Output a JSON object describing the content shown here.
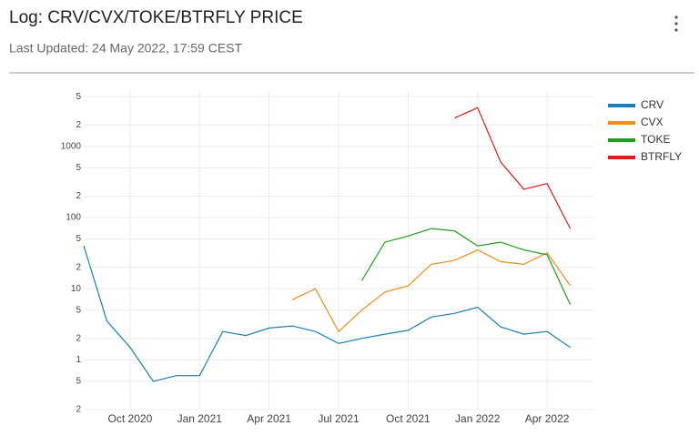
{
  "chart_data": {
    "type": "line",
    "title": "Log: CRV/CVX/TOKE/BTRFLY PRICE",
    "subtitle": "Last Updated: 24 May 2022, 17:59 CEST",
    "log_y": true,
    "grid": true,
    "legend": "right",
    "x": [
      "2020-08",
      "2020-09",
      "2020-10",
      "2020-11",
      "2020-12",
      "2021-01",
      "2021-02",
      "2021-03",
      "2021-04",
      "2021-05",
      "2021-06",
      "2021-07",
      "2021-08",
      "2021-09",
      "2021-10",
      "2021-11",
      "2021-12",
      "2022-01",
      "2022-02",
      "2022-03",
      "2022-04",
      "2022-05"
    ],
    "xlim": [
      "2020-08",
      "2022-06"
    ],
    "xticks": [
      {
        "value": "2020-10",
        "label": "Oct 2020"
      },
      {
        "value": "2021-01",
        "label": "Jan 2021"
      },
      {
        "value": "2021-04",
        "label": "Apr 2021"
      },
      {
        "value": "2021-07",
        "label": "Jul 2021"
      },
      {
        "value": "2021-10",
        "label": "Oct 2021"
      },
      {
        "value": "2022-01",
        "label": "Jan 2022"
      },
      {
        "value": "2022-04",
        "label": "Apr 2022"
      }
    ],
    "ylim": [
      0.2,
      6000
    ],
    "yticks": [
      {
        "value": 0.2,
        "label": "2"
      },
      {
        "value": 0.5,
        "label": "5"
      },
      1,
      2,
      5,
      10,
      {
        "value": 20,
        "label": "2"
      },
      {
        "value": 50,
        "label": "5"
      },
      100,
      {
        "value": 200,
        "label": "2"
      },
      {
        "value": 500,
        "label": "5"
      },
      1000,
      {
        "value": 2000,
        "label": "2"
      },
      {
        "value": 5000,
        "label": "5"
      }
    ],
    "series": [
      {
        "name": "CRV",
        "color": "#1a80b6",
        "values": [
          40,
          3.5,
          1.5,
          0.5,
          0.6,
          0.6,
          2.5,
          2.2,
          2.8,
          3.0,
          2.5,
          1.7,
          2.0,
          2.3,
          2.6,
          4.0,
          4.5,
          5.5,
          2.9,
          2.3,
          2.5,
          1.5
        ]
      },
      {
        "name": "CVX",
        "color": "#f28c1b",
        "values": [
          null,
          null,
          null,
          null,
          null,
          null,
          null,
          null,
          null,
          7,
          10,
          2.5,
          5,
          9,
          11,
          22,
          25,
          35,
          24,
          22,
          32,
          11
        ]
      },
      {
        "name": "TOKE",
        "color": "#1aa01a",
        "values": [
          null,
          null,
          null,
          null,
          null,
          null,
          null,
          null,
          null,
          null,
          null,
          null,
          13,
          45,
          55,
          70,
          65,
          40,
          45,
          35,
          30,
          6
        ]
      },
      {
        "name": "BTRFLY",
        "color": "#e31a1c",
        "values": [
          null,
          null,
          null,
          null,
          null,
          null,
          null,
          null,
          null,
          null,
          null,
          null,
          null,
          null,
          null,
          null,
          2500,
          3500,
          600,
          250,
          300,
          70
        ]
      }
    ]
  }
}
